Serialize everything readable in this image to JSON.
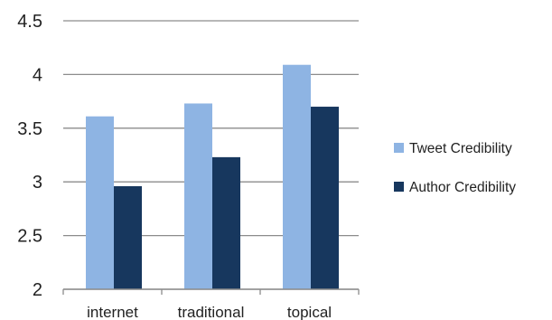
{
  "chart_data": {
    "type": "bar",
    "title": "",
    "xlabel": "",
    "ylabel": "",
    "categories": [
      "internet",
      "traditional",
      "topical"
    ],
    "series": [
      {
        "name": "Tweet Credibility",
        "values": [
          3.61,
          3.73,
          4.09
        ],
        "color": "#8eb4e3"
      },
      {
        "name": "Author Credibility",
        "values": [
          2.96,
          3.23,
          3.7
        ],
        "color": "#17375e"
      }
    ],
    "ylim": [
      2,
      4.5
    ],
    "yticks": [
      "2",
      "2.5",
      "3",
      "3.5",
      "4",
      "4.5"
    ],
    "grid": true,
    "gridColor": "#8c8c8c",
    "legend_position": "right"
  }
}
